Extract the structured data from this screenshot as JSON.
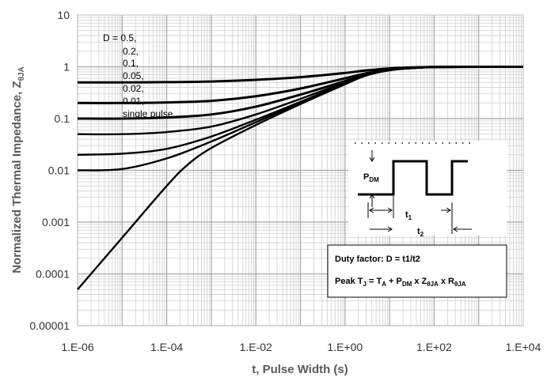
{
  "chart_data": {
    "type": "line",
    "title": "",
    "xlabel": "t, Pulse Width (s)",
    "ylabel": "Normalized Thermal Impedance, Z",
    "ylabel_sub": "θJA",
    "x_scale": "log",
    "y_scale": "log",
    "xlim": [
      1e-06,
      10000
    ],
    "ylim": [
      1e-05,
      10
    ],
    "grid": true,
    "x_tick_labels": [
      "1.E-06",
      "1.E-04",
      "1.E-02",
      "1.E+00",
      "1.E+02",
      "1.E+04"
    ],
    "y_tick_labels": [
      "10",
      "1",
      "0.1",
      "0.01",
      "0.001",
      "0.0001",
      "0.00001"
    ],
    "legend": {
      "entries": [
        "D = 0.5,",
        "0.2,",
        "0.1,",
        "0.05,",
        "0.02,",
        "0.01,",
        "single pulse"
      ]
    },
    "series": [
      {
        "name": "0.5",
        "x": [
          1e-06,
          1e-05,
          0.0001,
          0.001,
          0.01,
          0.1,
          1,
          3,
          10,
          30,
          100,
          1000,
          10000
        ],
        "y": [
          0.5,
          0.5,
          0.505,
          0.52,
          0.56,
          0.63,
          0.76,
          0.85,
          0.93,
          0.97,
          0.99,
          1,
          1
        ]
      },
      {
        "name": "0.2",
        "x": [
          1e-06,
          1e-05,
          0.0001,
          0.001,
          0.01,
          0.1,
          1,
          3,
          10,
          30,
          100,
          1000,
          10000
        ],
        "y": [
          0.2,
          0.2,
          0.205,
          0.22,
          0.27,
          0.38,
          0.6,
          0.75,
          0.88,
          0.95,
          0.99,
          1,
          1
        ]
      },
      {
        "name": "0.1",
        "x": [
          1e-06,
          1e-05,
          0.0001,
          0.001,
          0.01,
          0.1,
          1,
          3,
          10,
          30,
          100,
          1000,
          10000
        ],
        "y": [
          0.1,
          0.1,
          0.105,
          0.12,
          0.17,
          0.29,
          0.53,
          0.72,
          0.87,
          0.95,
          0.99,
          1,
          1
        ]
      },
      {
        "name": "0.05",
        "x": [
          1e-06,
          1e-05,
          0.0001,
          0.001,
          0.01,
          0.1,
          1,
          3,
          10,
          30,
          100,
          1000,
          10000
        ],
        "y": [
          0.05,
          0.05,
          0.055,
          0.07,
          0.12,
          0.24,
          0.5,
          0.7,
          0.86,
          0.94,
          0.99,
          1,
          1
        ]
      },
      {
        "name": "0.02",
        "x": [
          1e-06,
          1e-05,
          0.0001,
          0.001,
          0.01,
          0.1,
          1,
          3,
          10,
          30,
          100,
          1000,
          10000
        ],
        "y": [
          0.02,
          0.021,
          0.026,
          0.045,
          0.095,
          0.21,
          0.48,
          0.69,
          0.86,
          0.94,
          0.99,
          1,
          1
        ]
      },
      {
        "name": "0.01",
        "x": [
          1e-06,
          1e-05,
          0.0001,
          0.001,
          0.01,
          0.1,
          1,
          3,
          10,
          30,
          100,
          1000,
          10000
        ],
        "y": [
          0.01,
          0.0106,
          0.017,
          0.036,
          0.085,
          0.2,
          0.47,
          0.69,
          0.86,
          0.94,
          0.99,
          1,
          1
        ]
      },
      {
        "name": "single pulse",
        "x": [
          1e-06,
          1e-05,
          0.0001,
          0.0003,
          0.001,
          0.01,
          0.1,
          1,
          3,
          10,
          30,
          100,
          1000,
          10000
        ],
        "y": [
          5e-05,
          0.0005,
          0.005,
          0.013,
          0.027,
          0.075,
          0.19,
          0.46,
          0.68,
          0.86,
          0.94,
          0.99,
          1,
          1
        ]
      }
    ]
  },
  "inset": {
    "pdm_label": "P",
    "pdm_sub": "DM",
    "t1_label": "t",
    "t1_sub": "1",
    "t2_label": "t",
    "t2_sub": "2",
    "duty_factor": "Duty factor: D = t1/t2",
    "peak_formula": {
      "prefix": "Peak T",
      "tj_sub": "J",
      "eq": " = T",
      "ta_sub": "A",
      "plus": " + P",
      "pdm_sub": "DM",
      "times1": " x Z",
      "z_sub": "θJA",
      "times2": " x R",
      "r_sub": "θJA"
    }
  }
}
